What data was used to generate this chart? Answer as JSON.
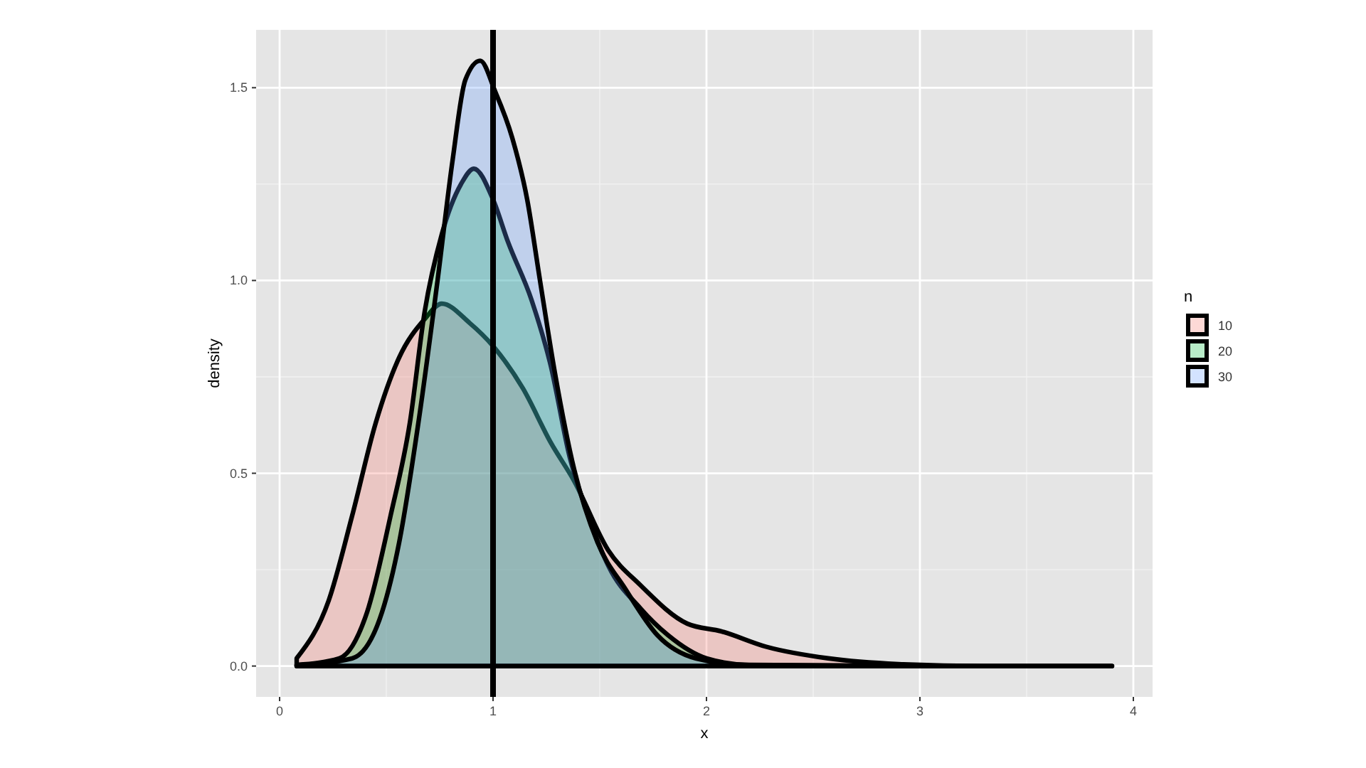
{
  "chart_data": {
    "type": "area",
    "xlabel": "x",
    "ylabel": "density",
    "legend_title": "n",
    "legend": "right",
    "grid": true,
    "xlim": [
      -0.11,
      4.09
    ],
    "ylim": [
      -0.08,
      1.65
    ],
    "xticks": [
      0,
      1,
      2,
      3,
      4
    ],
    "yticks": [
      {
        "value": 0,
        "label": "0.0"
      },
      {
        "value": 0.5,
        "label": "0.5"
      },
      {
        "value": 1,
        "label": "1.0"
      },
      {
        "value": 1.5,
        "label": "1.5"
      }
    ],
    "ref_lines": [
      {
        "axis": "x",
        "value": 1,
        "color": "#000000"
      }
    ],
    "series": [
      {
        "name": "10",
        "color": "#F8766D",
        "x": [
          0.08,
          0.23,
          0.34,
          0.45,
          0.56,
          0.68,
          0.76,
          0.89,
          1.0,
          1.14,
          1.27,
          1.38,
          1.54,
          1.69,
          1.91,
          2.07,
          2.28,
          2.57,
          2.9,
          3.3,
          3.9
        ],
        "values": [
          0.02,
          0.17,
          0.39,
          0.63,
          0.8,
          0.9,
          0.94,
          0.89,
          0.83,
          0.72,
          0.58,
          0.48,
          0.3,
          0.21,
          0.11,
          0.09,
          0.05,
          0.02,
          0.005,
          0,
          0
        ]
      },
      {
        "name": "20",
        "color": "#00BA38",
        "x": [
          0.08,
          0.28,
          0.41,
          0.52,
          0.61,
          0.68,
          0.76,
          0.85,
          0.91,
          1.0,
          1.07,
          1.18,
          1.27,
          1.36,
          1.44,
          1.54,
          1.69,
          1.82,
          2.0,
          2.2,
          3.0,
          3.9
        ],
        "values": [
          0.003,
          0.02,
          0.14,
          0.39,
          0.63,
          0.92,
          1.12,
          1.25,
          1.29,
          1.21,
          1.1,
          0.95,
          0.78,
          0.54,
          0.4,
          0.26,
          0.15,
          0.08,
          0.02,
          0.003,
          0,
          0
        ]
      },
      {
        "name": "30",
        "color": "#619CFF",
        "x": [
          0.08,
          0.34,
          0.48,
          0.56,
          0.65,
          0.74,
          0.81,
          0.87,
          0.94,
          1.01,
          1.09,
          1.16,
          1.22,
          1.29,
          1.38,
          1.49,
          1.62,
          1.77,
          1.95,
          2.2,
          3.0,
          3.9
        ],
        "values": [
          0.002,
          0.02,
          0.14,
          0.32,
          0.63,
          1.0,
          1.31,
          1.52,
          1.57,
          1.49,
          1.37,
          1.21,
          1.0,
          0.76,
          0.51,
          0.32,
          0.2,
          0.08,
          0.02,
          0.002,
          0,
          0
        ]
      }
    ]
  }
}
